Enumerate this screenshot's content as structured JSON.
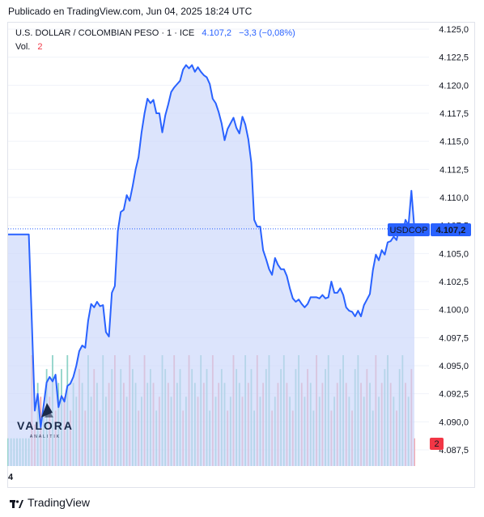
{
  "header": {
    "published": "Publicado en TradingView.com, Jun 04, 2025 18:24 UTC"
  },
  "legend": {
    "symbol": "U.S. DOLLAR / COLOMBIAN PESO · 1 · ICE",
    "last": "4.107,2",
    "change": "−3,3 (−0,08%)",
    "vol_label": "Vol.",
    "vol_value": "2"
  },
  "price_tag": {
    "symbol": "USDCOP",
    "value": "4.107,2"
  },
  "vol_tag": "2",
  "bottom_label": "4",
  "brand": {
    "name": "TradingView"
  },
  "watermark": {
    "name": "VALORA",
    "sub": "ANALITIK"
  },
  "colors": {
    "line": "#2962ff",
    "fill": "#c9d6fa",
    "up_vol": "#8fd3c8",
    "down_vol": "#f5a3a8",
    "tag": "#2962ff",
    "vol_tag": "#f23645"
  },
  "chart_data": {
    "type": "area",
    "ylim": [
      4086.5,
      4125.5
    ],
    "y_ticks": [
      "4.125,0",
      "4.122,5",
      "4.120,0",
      "4.117,5",
      "4.115,0",
      "4.112,5",
      "4.110,0",
      "4.107,5",
      "4.105,0",
      "4.102,5",
      "4.100,0",
      "4.097,5",
      "4.095,0",
      "4.092,5",
      "4.090,0",
      "4.087,5"
    ],
    "y_tick_values": [
      4125.0,
      4122.5,
      4120.0,
      4117.5,
      4115.0,
      4112.5,
      4110.0,
      4107.5,
      4105.0,
      4102.5,
      4100.0,
      4097.5,
      4095.0,
      4092.5,
      4090.0,
      4087.5
    ],
    "last_price": 4107.2,
    "values": [
      4106.7,
      4106.7,
      4106.7,
      4106.7,
      4106.7,
      4106.7,
      4106.7,
      4106.7,
      4099.0,
      4091.0,
      4092.5,
      4089.5,
      4091.5,
      4093.5,
      4094.0,
      4093.6,
      4094.2,
      4091.3,
      4092.3,
      4091.8,
      4093.2,
      4093.4,
      4094.0,
      4095.0,
      4096.3,
      4096.8,
      4096.6,
      4099.0,
      4100.5,
      4100.2,
      4100.7,
      4100.3,
      4100.4,
      4098.0,
      4097.6,
      4101.5,
      4102.1,
      4107.0,
      4108.7,
      4108.9,
      4110.2,
      4109.7,
      4111.0,
      4112.5,
      4113.6,
      4115.8,
      4117.5,
      4118.8,
      4118.4,
      4118.7,
      4117.5,
      4117.5,
      4115.8,
      4117.3,
      4118.3,
      4119.4,
      4119.8,
      4120.1,
      4120.4,
      4121.4,
      4121.8,
      4121.5,
      4121.8,
      4121.2,
      4121.6,
      4121.2,
      4120.9,
      4120.7,
      4120.1,
      4118.8,
      4118.4,
      4117.6,
      4116.6,
      4115.1,
      4116.1,
      4116.6,
      4117.1,
      4116.2,
      4115.7,
      4117.2,
      4116.5,
      4115.2,
      4113.1,
      4108.0,
      4107.4,
      4107.4,
      4105.3,
      4104.5,
      4103.6,
      4103.1,
      4104.6,
      4104.0,
      4103.6,
      4103.6,
      4103.0,
      4101.9,
      4101.0,
      4100.7,
      4100.9,
      4100.5,
      4100.2,
      4100.5,
      4101.1,
      4101.1,
      4101.1,
      4101.0,
      4101.3,
      4101.0,
      4101.1,
      4102.5,
      4101.5,
      4101.5,
      4101.9,
      4101.3,
      4100.2,
      4099.9,
      4099.8,
      4099.4,
      4099.9,
      4099.4,
      4100.4,
      4100.9,
      4101.4,
      4103.5,
      4104.9,
      4104.4,
      4105.3,
      4104.9,
      4106.0,
      4106.1,
      4106.5,
      4106.2,
      4107.5,
      4106.7,
      4108.0,
      4107.5,
      4110.6,
      4107.2
    ],
    "volume_max": 8,
    "volumes": [
      2,
      2,
      2,
      2,
      2,
      2,
      2,
      2,
      8,
      3,
      6,
      5,
      4,
      7,
      5,
      8,
      4,
      6,
      7,
      5,
      8,
      4,
      6,
      5,
      7,
      6,
      4,
      8,
      5,
      7,
      6,
      4,
      8,
      5,
      6,
      7,
      8,
      4,
      7,
      6,
      5,
      8,
      7,
      6,
      4,
      5,
      8,
      6,
      7,
      6,
      4,
      5,
      8,
      7,
      6,
      5,
      8,
      6,
      7,
      4,
      5,
      8,
      7,
      6,
      5,
      8,
      6,
      7,
      4,
      8,
      5,
      6,
      7,
      6,
      4,
      5,
      8,
      7,
      6,
      5,
      8,
      6,
      7,
      4,
      8,
      5,
      6,
      7,
      8,
      4,
      5,
      6,
      7,
      8,
      6,
      5,
      4,
      7,
      8,
      6,
      5,
      7,
      6,
      4,
      8,
      5,
      6,
      7,
      8,
      4,
      5,
      6,
      7,
      8,
      6,
      5,
      4,
      7,
      8,
      6,
      5,
      7,
      6,
      4,
      8,
      5,
      6,
      7,
      8,
      6,
      5,
      4,
      7,
      8,
      6,
      5,
      7,
      2
    ],
    "volume_up": [
      true,
      true,
      true,
      true,
      true,
      true,
      true,
      true,
      false,
      false,
      true,
      false,
      true,
      true,
      false,
      true,
      false,
      true,
      true,
      false,
      true,
      false,
      true,
      true,
      false,
      true,
      false,
      true,
      true,
      false,
      true,
      false,
      true,
      true,
      false,
      true,
      false,
      true,
      true,
      false,
      true,
      false,
      true,
      true,
      false,
      true,
      false,
      true,
      true,
      false,
      true,
      false,
      true,
      true,
      false,
      true,
      false,
      true,
      true,
      false,
      true,
      false,
      true,
      true,
      false,
      true,
      false,
      true,
      true,
      false,
      true,
      false,
      true,
      true,
      false,
      true,
      false,
      true,
      true,
      false,
      true,
      false,
      true,
      true,
      false,
      true,
      false,
      true,
      true,
      false,
      true,
      false,
      true,
      true,
      false,
      true,
      false,
      true,
      true,
      false,
      true,
      false,
      true,
      true,
      false,
      true,
      false,
      true,
      true,
      false,
      true,
      false,
      true,
      true,
      false,
      true,
      false,
      true,
      true,
      false,
      true,
      false,
      true,
      true,
      false,
      true,
      false,
      true,
      true,
      false,
      true,
      false,
      true,
      true,
      false,
      true,
      false,
      false
    ]
  }
}
